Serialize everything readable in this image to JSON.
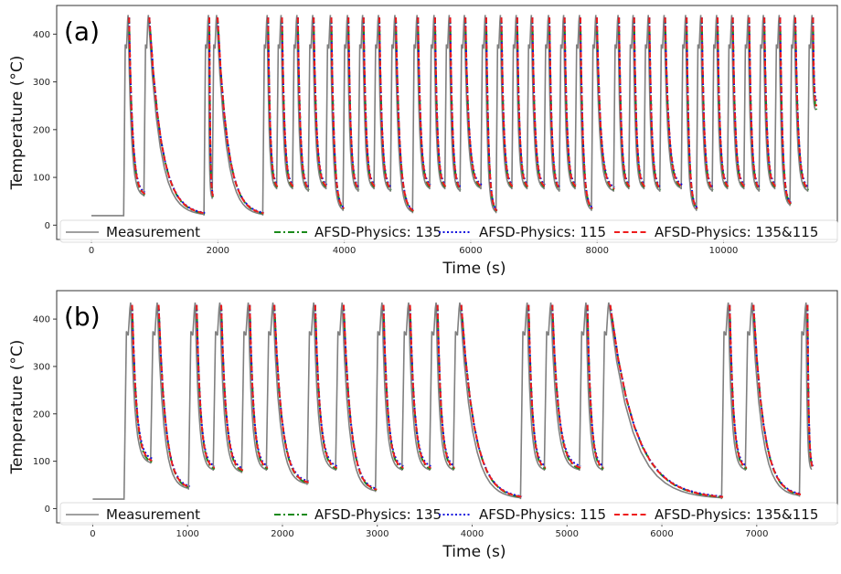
{
  "chart_data": [
    {
      "type": "line",
      "panel_label": "(a)",
      "xlabel": "Time (s)",
      "ylabel": "Temperature (°C)",
      "xlim": [
        -550,
        11800
      ],
      "ylim": [
        -30,
        460
      ],
      "x_ticks": [
        0,
        2000,
        4000,
        6000,
        8000,
        10000
      ],
      "y_ticks": [
        0,
        100,
        200,
        300,
        400
      ],
      "grid": false,
      "legend_position": "bottom",
      "series": [
        {
          "name": "Measurement",
          "color": "#808080",
          "style": "solid"
        },
        {
          "name": "AFSD-Physics: 135",
          "color": "#1a8a1a",
          "style": "dashdot"
        },
        {
          "name": "AFSD-Physics: 115",
          "color": "#1010dd",
          "style": "dotted"
        },
        {
          "name": "AFSD-Physics: 135&115",
          "color": "#ee1c1c",
          "style": "dashed"
        }
      ],
      "peak_temperature": 440,
      "peak_times": [
        580,
        900,
        1850,
        1980,
        2780,
        3000,
        3250,
        3500,
        3780,
        4050,
        4290,
        4540,
        4800,
        5150,
        5420,
        5660,
        5900,
        6230,
        6470,
        6720,
        6960,
        7230,
        7470,
        7720,
        7980,
        8330,
        8570,
        8810,
        9060,
        9400,
        9640,
        9890,
        10130,
        10390,
        10630,
        10880,
        11120,
        11400
      ],
      "trough_temperatures": [
        60,
        20,
        55,
        20,
        75,
        75,
        70,
        75,
        30,
        70,
        75,
        70,
        25,
        75,
        75,
        70,
        75,
        25,
        75,
        75,
        75,
        70,
        75,
        30,
        70,
        75,
        75,
        70,
        75,
        30,
        70,
        75,
        75,
        70,
        75,
        40,
        70,
        240
      ]
    },
    {
      "type": "line",
      "panel_label": "(b)",
      "xlabel": "Time (s)",
      "ylabel": "Temperature (°C)",
      "xlim": [
        -380,
        7850
      ],
      "ylim": [
        -30,
        460
      ],
      "x_ticks": [
        0,
        1000,
        2000,
        3000,
        4000,
        5000,
        6000,
        7000
      ],
      "y_ticks": [
        0,
        100,
        200,
        300,
        400
      ],
      "grid": false,
      "legend_position": "bottom",
      "series": [
        {
          "name": "Measurement",
          "color": "#808080",
          "style": "solid"
        },
        {
          "name": "AFSD-Physics: 135",
          "color": "#1a8a1a",
          "style": "dashdot"
        },
        {
          "name": "AFSD-Physics: 115",
          "color": "#1010dd",
          "style": "dotted"
        },
        {
          "name": "AFSD-Physics: 135&115",
          "color": "#ee1c1c",
          "style": "dashed"
        }
      ],
      "peak_temperature": 435,
      "peak_times": [
        400,
        680,
        1080,
        1340,
        1640,
        1900,
        2330,
        2630,
        3050,
        3330,
        3620,
        3870,
        4580,
        4830,
        5200,
        5440,
        6700,
        6950,
        7520
      ],
      "trough_temperatures": [
        95,
        40,
        80,
        75,
        80,
        50,
        80,
        35,
        80,
        80,
        80,
        20,
        80,
        80,
        80,
        20,
        80,
        25,
        80
      ]
    }
  ]
}
